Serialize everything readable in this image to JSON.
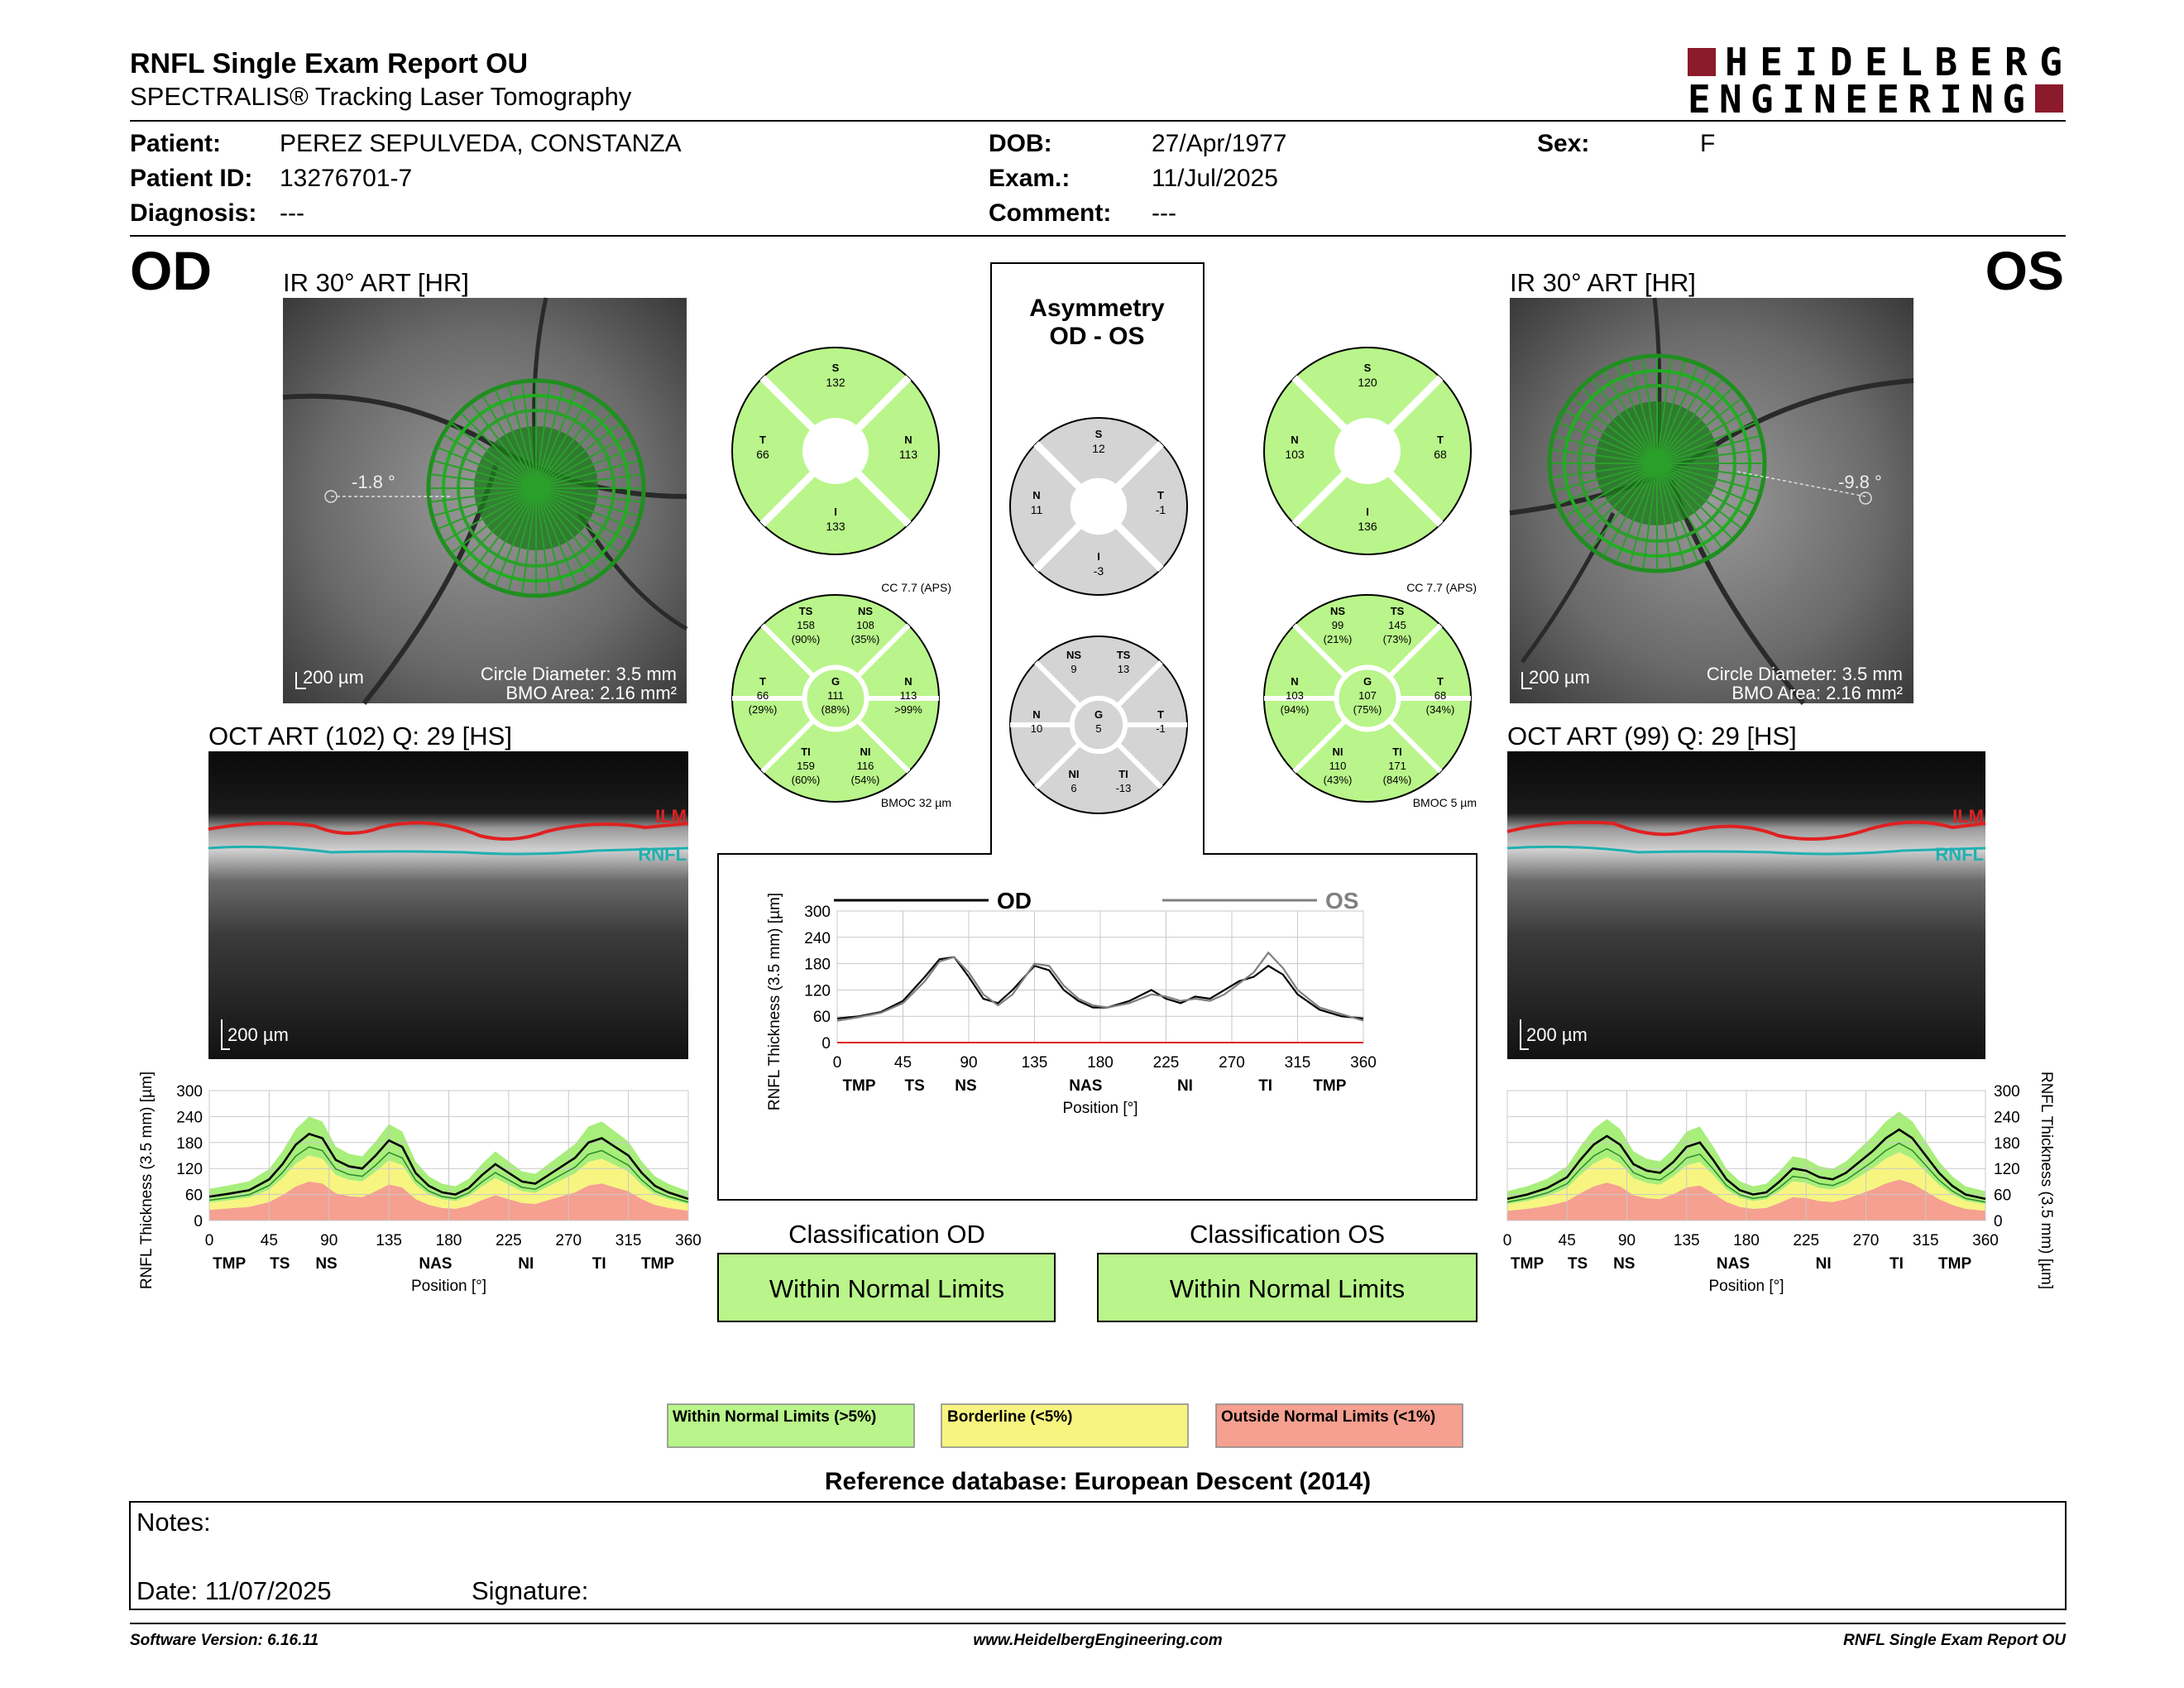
{
  "header": {
    "title": "RNFL Single Exam Report OU",
    "subtitle": "SPECTRALIS® Tracking Laser Tomography",
    "brand_line1": "HEIDELBERG",
    "brand_line2": "ENGINEERING",
    "brand_color": "#8b1a2b"
  },
  "patient": {
    "patient_label": "Patient:",
    "patient": "PEREZ SEPULVEDA, CONSTANZA",
    "id_label": "Patient ID:",
    "id": "13276701-7",
    "diag_label": "Diagnosis:",
    "diag": "---",
    "dob_label": "DOB:",
    "dob": "27/Apr/1977",
    "exam_label": "Exam.:",
    "exam": "11/Jul/2025",
    "comment_label": "Comment:",
    "comment": "---",
    "sex_label": "Sex:",
    "sex": "F"
  },
  "od": {
    "eye": "OD",
    "ir_title": "IR 30° ART [HR]",
    "angle": "-1.8 °",
    "scale": "200 µm",
    "circle": "Circle Diameter: 3.5 mm",
    "bmo": "BMO Area: 2.16 mm²",
    "oct_title": "OCT ART (102) Q: 29 [HS]",
    "oct_scale": "200 µm",
    "sectors": {
      "S": "132",
      "T": "66",
      "N": "113",
      "I": "133"
    },
    "cc": "CC 7.7 (APS)",
    "bmoc": "BMOC 32 µm",
    "sectors6": {
      "TS": [
        "TS",
        "158",
        "(90%)"
      ],
      "NS": [
        "NS",
        "108",
        "(35%)"
      ],
      "T": [
        "T",
        "66",
        "(29%)"
      ],
      "G": [
        "G",
        "111",
        "(88%)"
      ],
      "N": [
        "N",
        "113",
        ">99%"
      ],
      "TI": [
        "TI",
        "159",
        "(60%)"
      ],
      "NI": [
        "NI",
        "116",
        "(54%)"
      ]
    },
    "classification_title": "Classification OD",
    "classification": "Within Normal Limits"
  },
  "os": {
    "eye": "OS",
    "ir_title": "IR 30° ART [HR]",
    "angle": "-9.8 °",
    "scale": "200 µm",
    "circle": "Circle Diameter: 3.5 mm",
    "bmo": "BMO Area: 2.16 mm²",
    "oct_title": "OCT ART (99) Q: 29 [HS]",
    "oct_scale": "200 µm",
    "sectors": {
      "S": "120",
      "T": "68",
      "N": "103",
      "I": "136"
    },
    "cc": "CC 7.7 (APS)",
    "bmoc": "BMOC 5 µm",
    "sectors6": {
      "NS": [
        "NS",
        "99",
        "(21%)"
      ],
      "TS": [
        "TS",
        "145",
        "(73%)"
      ],
      "N": [
        "N",
        "103",
        "(94%)"
      ],
      "G": [
        "G",
        "107",
        "(75%)"
      ],
      "T": [
        "T",
        "68",
        "(34%)"
      ],
      "NI": [
        "NI",
        "110",
        "(43%)"
      ],
      "TI": [
        "TI",
        "171",
        "(84%)"
      ]
    },
    "classification_title": "Classification OS",
    "classification": "Within Normal Limits"
  },
  "asym": {
    "title1": "Asymmetry",
    "title2": "OD - OS",
    "sectors": {
      "S": [
        "S",
        "12"
      ],
      "N": [
        "N",
        "11"
      ],
      "T": [
        "T",
        "-1"
      ],
      "I": [
        "I",
        "-3"
      ]
    },
    "sectors6": {
      "NS": [
        "NS",
        "9"
      ],
      "TS": [
        "TS",
        "13"
      ],
      "N": [
        "N",
        "10"
      ],
      "G": [
        "G",
        "5"
      ],
      "T": [
        "T",
        "-1"
      ],
      "NI": [
        "NI",
        "6"
      ],
      "TI": [
        "TI",
        "-13"
      ]
    },
    "legend_od": "OD",
    "legend_os": "OS"
  },
  "oct_labels": {
    "ilm": "ILM",
    "rnfl": "RNFL"
  },
  "legend": {
    "wnl": "Within Normal Limits (>5%)",
    "bl": "Borderline (<5%)",
    "onl": "Outside Normal Limits (<1%)"
  },
  "colors": {
    "green": "#b9f58a",
    "green_band": "#a8ee7a",
    "yellow": "#f7f580",
    "red": "#f5a090",
    "grey": "#d4d4d4",
    "od_line": "#000000",
    "os_line": "#808080",
    "ilm": "#e02020",
    "rnfl": "#20b0b0"
  },
  "reference": "Reference database: European Descent (2014)",
  "notes": {
    "notes_label": "Notes:",
    "date": "Date: 11/07/2025",
    "signature": "Signature:"
  },
  "footer": {
    "left": "Software Version: 6.16.11",
    "center": "www.HeidelbergEngineering.com",
    "right": "RNFL Single Exam Report OU"
  },
  "chart_data": [
    {
      "type": "line",
      "title": "",
      "xlabel": "Position [°]",
      "ylabel": "RNFL Thickness (3.5 mm) [µm]",
      "xlim": [
        0,
        360
      ],
      "ylim": [
        0,
        300
      ],
      "xticks": [
        "0",
        "45",
        "90",
        "135",
        "180",
        "225",
        "270",
        "315",
        "360"
      ],
      "yticks": [
        "0",
        "60",
        "120",
        "180",
        "240",
        "300"
      ],
      "sector_labels": [
        "TMP",
        "TS",
        "NS",
        "NAS",
        "NI",
        "TI",
        "TMP"
      ],
      "series": [
        {
          "name": "",
          "x": [
            0,
            15,
            30,
            45,
            55,
            65,
            75,
            85,
            95,
            105,
            115,
            125,
            135,
            145,
            155,
            165,
            175,
            185,
            195,
            205,
            215,
            225,
            235,
            245,
            255,
            265,
            275,
            285,
            295,
            305,
            315,
            325,
            335,
            345,
            360
          ],
          "values": [
            55,
            62,
            70,
            95,
            130,
            175,
            200,
            190,
            140,
            125,
            120,
            150,
            185,
            170,
            110,
            80,
            65,
            60,
            75,
            105,
            130,
            110,
            90,
            85,
            105,
            125,
            145,
            180,
            190,
            170,
            150,
            110,
            80,
            65,
            50
          ]
        }
      ]
    },
    {
      "type": "line",
      "title": "",
      "xlabel": "Position [°]",
      "ylabel": "RNFL Thickness (3.5 mm) [µm]",
      "xlim": [
        0,
        360
      ],
      "ylim": [
        0,
        300
      ],
      "xticks": [
        "0",
        "45",
        "90",
        "135",
        "180",
        "225",
        "270",
        "315",
        "360"
      ],
      "yticks": [
        "0",
        "60",
        "120",
        "180",
        "240",
        "300"
      ],
      "sector_labels": [
        "TMP",
        "TS",
        "NS",
        "NAS",
        "NI",
        "TI",
        "TMP"
      ],
      "series": [
        {
          "name": "OD",
          "x": [
            0,
            15,
            30,
            45,
            60,
            70,
            80,
            90,
            100,
            110,
            120,
            135,
            145,
            155,
            165,
            175,
            185,
            200,
            215,
            225,
            235,
            245,
            255,
            265,
            275,
            285,
            295,
            305,
            315,
            330,
            345,
            360
          ],
          "values": [
            55,
            60,
            70,
            95,
            150,
            190,
            195,
            150,
            100,
            90,
            120,
            175,
            165,
            120,
            95,
            80,
            80,
            95,
            120,
            100,
            90,
            105,
            100,
            120,
            140,
            150,
            175,
            155,
            110,
            75,
            60,
            55
          ]
        },
        {
          "name": "OS",
          "x": [
            0,
            15,
            30,
            45,
            60,
            70,
            80,
            90,
            100,
            110,
            120,
            135,
            145,
            155,
            165,
            175,
            185,
            200,
            215,
            225,
            235,
            245,
            255,
            265,
            275,
            285,
            295,
            305,
            315,
            330,
            345,
            360
          ],
          "values": [
            50,
            58,
            68,
            90,
            140,
            185,
            195,
            160,
            110,
            85,
            110,
            180,
            175,
            130,
            100,
            85,
            80,
            90,
            110,
            105,
            95,
            100,
            95,
            110,
            135,
            160,
            205,
            170,
            120,
            80,
            65,
            50
          ]
        }
      ]
    },
    {
      "type": "line",
      "title": "",
      "xlabel": "Position [°]",
      "ylabel": "RNFL Thickness (3.5 mm) [µm]",
      "xlim": [
        0,
        360
      ],
      "ylim": [
        0,
        300
      ],
      "xticks": [
        "0",
        "45",
        "90",
        "135",
        "180",
        "225",
        "270",
        "315",
        "360"
      ],
      "yticks": [
        "0",
        "60",
        "120",
        "180",
        "240",
        "300"
      ],
      "sector_labels": [
        "TMP",
        "TS",
        "NS",
        "NAS",
        "NI",
        "TI",
        "TMP"
      ],
      "series": [
        {
          "name": "",
          "x": [
            0,
            15,
            30,
            45,
            55,
            65,
            75,
            85,
            95,
            105,
            115,
            125,
            135,
            145,
            155,
            165,
            175,
            185,
            195,
            205,
            215,
            225,
            235,
            245,
            255,
            265,
            275,
            285,
            295,
            305,
            315,
            325,
            335,
            345,
            360
          ],
          "values": [
            50,
            60,
            75,
            100,
            140,
            175,
            195,
            175,
            130,
            115,
            110,
            135,
            170,
            180,
            140,
            95,
            70,
            60,
            65,
            90,
            120,
            115,
            100,
            95,
            110,
            135,
            160,
            190,
            210,
            190,
            150,
            110,
            80,
            60,
            50
          ]
        }
      ]
    }
  ]
}
